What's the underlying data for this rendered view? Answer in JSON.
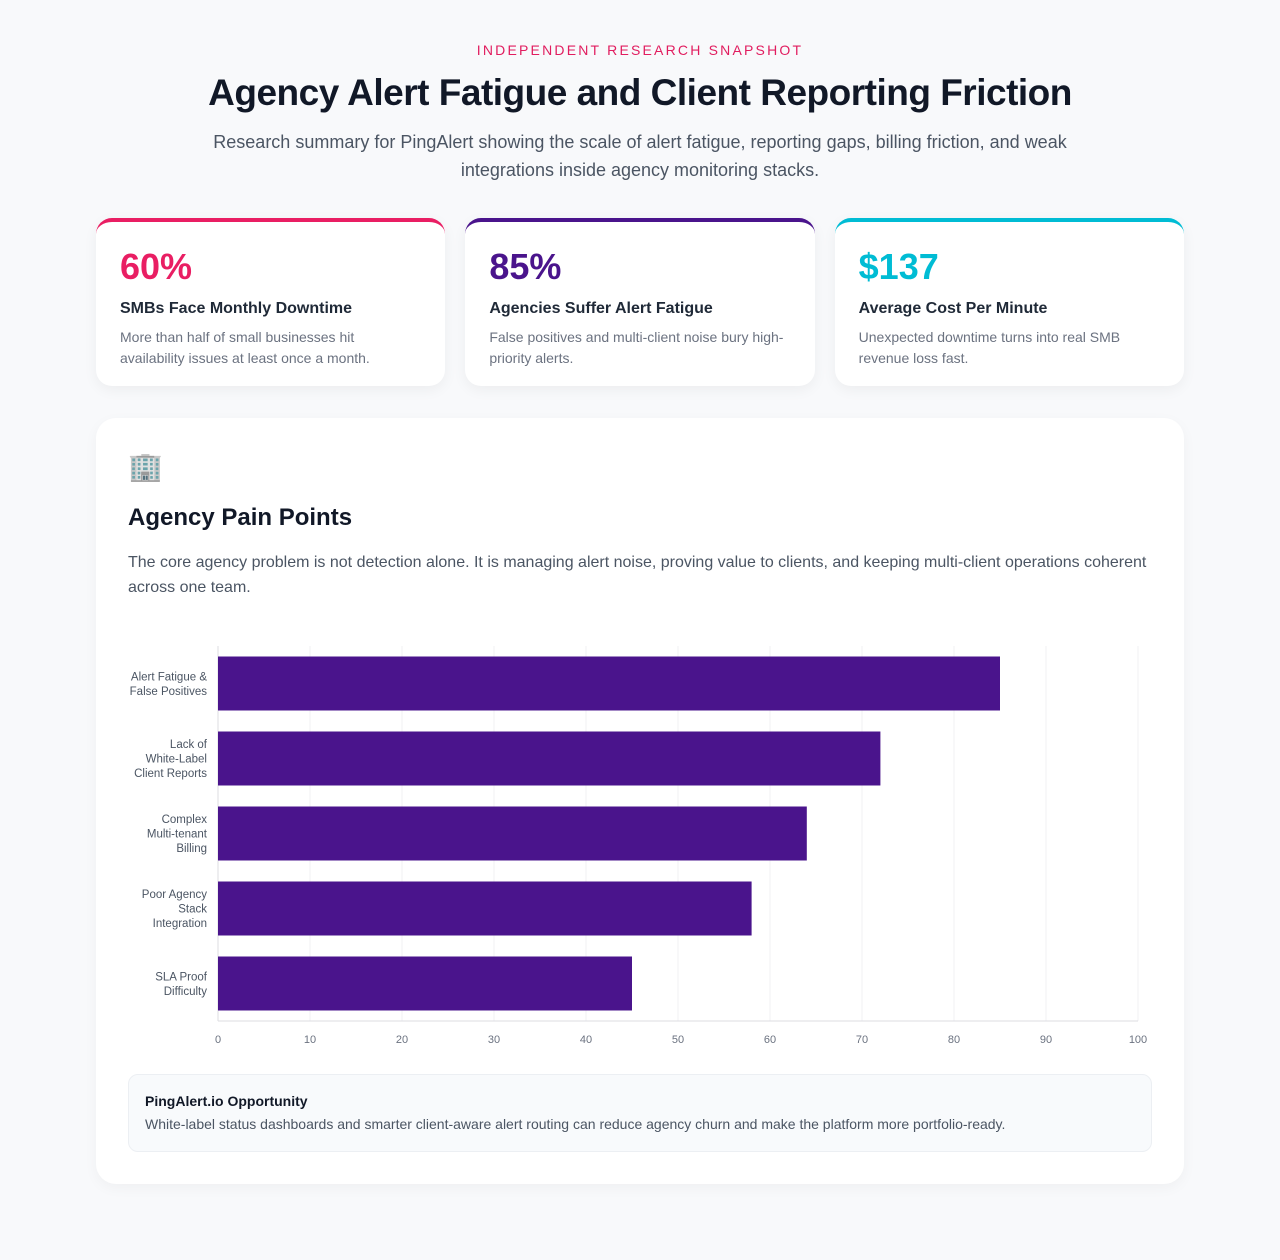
{
  "header": {
    "eyebrow": "INDEPENDENT RESEARCH SNAPSHOT",
    "title": "Agency Alert Fatigue and Client Reporting Friction",
    "subtitle": "Research summary for PingAlert showing the scale of alert fatigue, reporting gaps, billing friction, and weak integrations inside agency monitoring stacks."
  },
  "stats": [
    {
      "value": "60%",
      "title": "SMBs Face Monthly Downtime",
      "desc": "More than half of small businesses hit availability issues at least once a month.",
      "color": "#e91e63"
    },
    {
      "value": "85%",
      "title": "Agencies Suffer Alert Fatigue",
      "desc": "False positives and multi-client noise bury high-priority alerts.",
      "color": "#4a148c"
    },
    {
      "value": "$137",
      "title": "Average Cost Per Minute",
      "desc": "Unexpected downtime turns into real SMB revenue loss fast.",
      "color": "#00bcd4"
    }
  ],
  "section": {
    "icon": "office-building-icon",
    "title": "Agency Pain Points",
    "desc": "The core agency problem is not detection alone. It is managing alert noise, proving value to clients, and keeping multi-client operations coherent across one team."
  },
  "chart_data": {
    "type": "bar",
    "orientation": "horizontal",
    "categories": [
      [
        "Alert Fatigue &",
        "False Positives"
      ],
      [
        "Lack of",
        "White-Label",
        "Client Reports"
      ],
      [
        "Complex",
        "Multi-tenant",
        "Billing"
      ],
      [
        "Poor Agency",
        "Stack",
        "Integration"
      ],
      [
        "SLA Proof",
        "Difficulty"
      ]
    ],
    "values": [
      85,
      72,
      64,
      58,
      45
    ],
    "xlim": [
      0,
      100
    ],
    "xticks": [
      0,
      10,
      20,
      30,
      40,
      50,
      60,
      70,
      80,
      90,
      100
    ],
    "grid": true,
    "color": "#4a148c"
  },
  "opportunity": {
    "title": "PingAlert.io Opportunity",
    "body": "White-label status dashboards and smarter client-aware alert routing can reduce agency churn and make the platform more portfolio-ready."
  }
}
